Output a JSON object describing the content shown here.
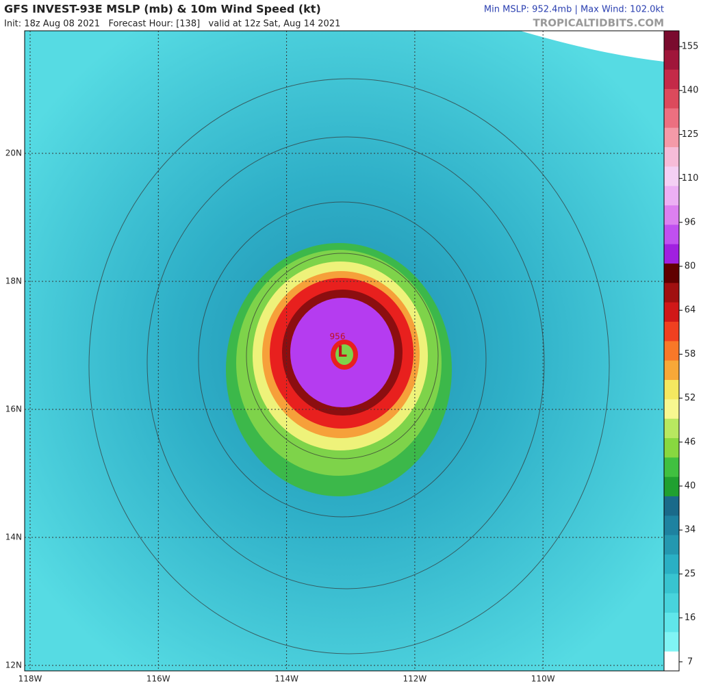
{
  "header": {
    "title": "GFS INVEST-93E MSLP (mb) & 10m Wind Speed (kt)",
    "subtitle": "Init: 18z Aug 08 2021   Forecast Hour: [138]   valid at 12z Sat, Aug 14 2021",
    "stats": "Min MSLP: 952.4mb | Max Wind: 102.0kt",
    "site": "TROPICALTIDBITS.COM"
  },
  "map": {
    "lat_labels": [
      "20N",
      "18N",
      "16N",
      "14N",
      "12N"
    ],
    "lon_labels": [
      "118W",
      "116W",
      "114W",
      "112W",
      "110W"
    ],
    "low_symbol": "L",
    "low_pressure": "956"
  },
  "colorbar": {
    "labels": [
      "155",
      "140",
      "125",
      "110",
      "96",
      "80",
      "64",
      "58",
      "52",
      "46",
      "40",
      "34",
      "25",
      "16",
      "7"
    ]
  }
}
